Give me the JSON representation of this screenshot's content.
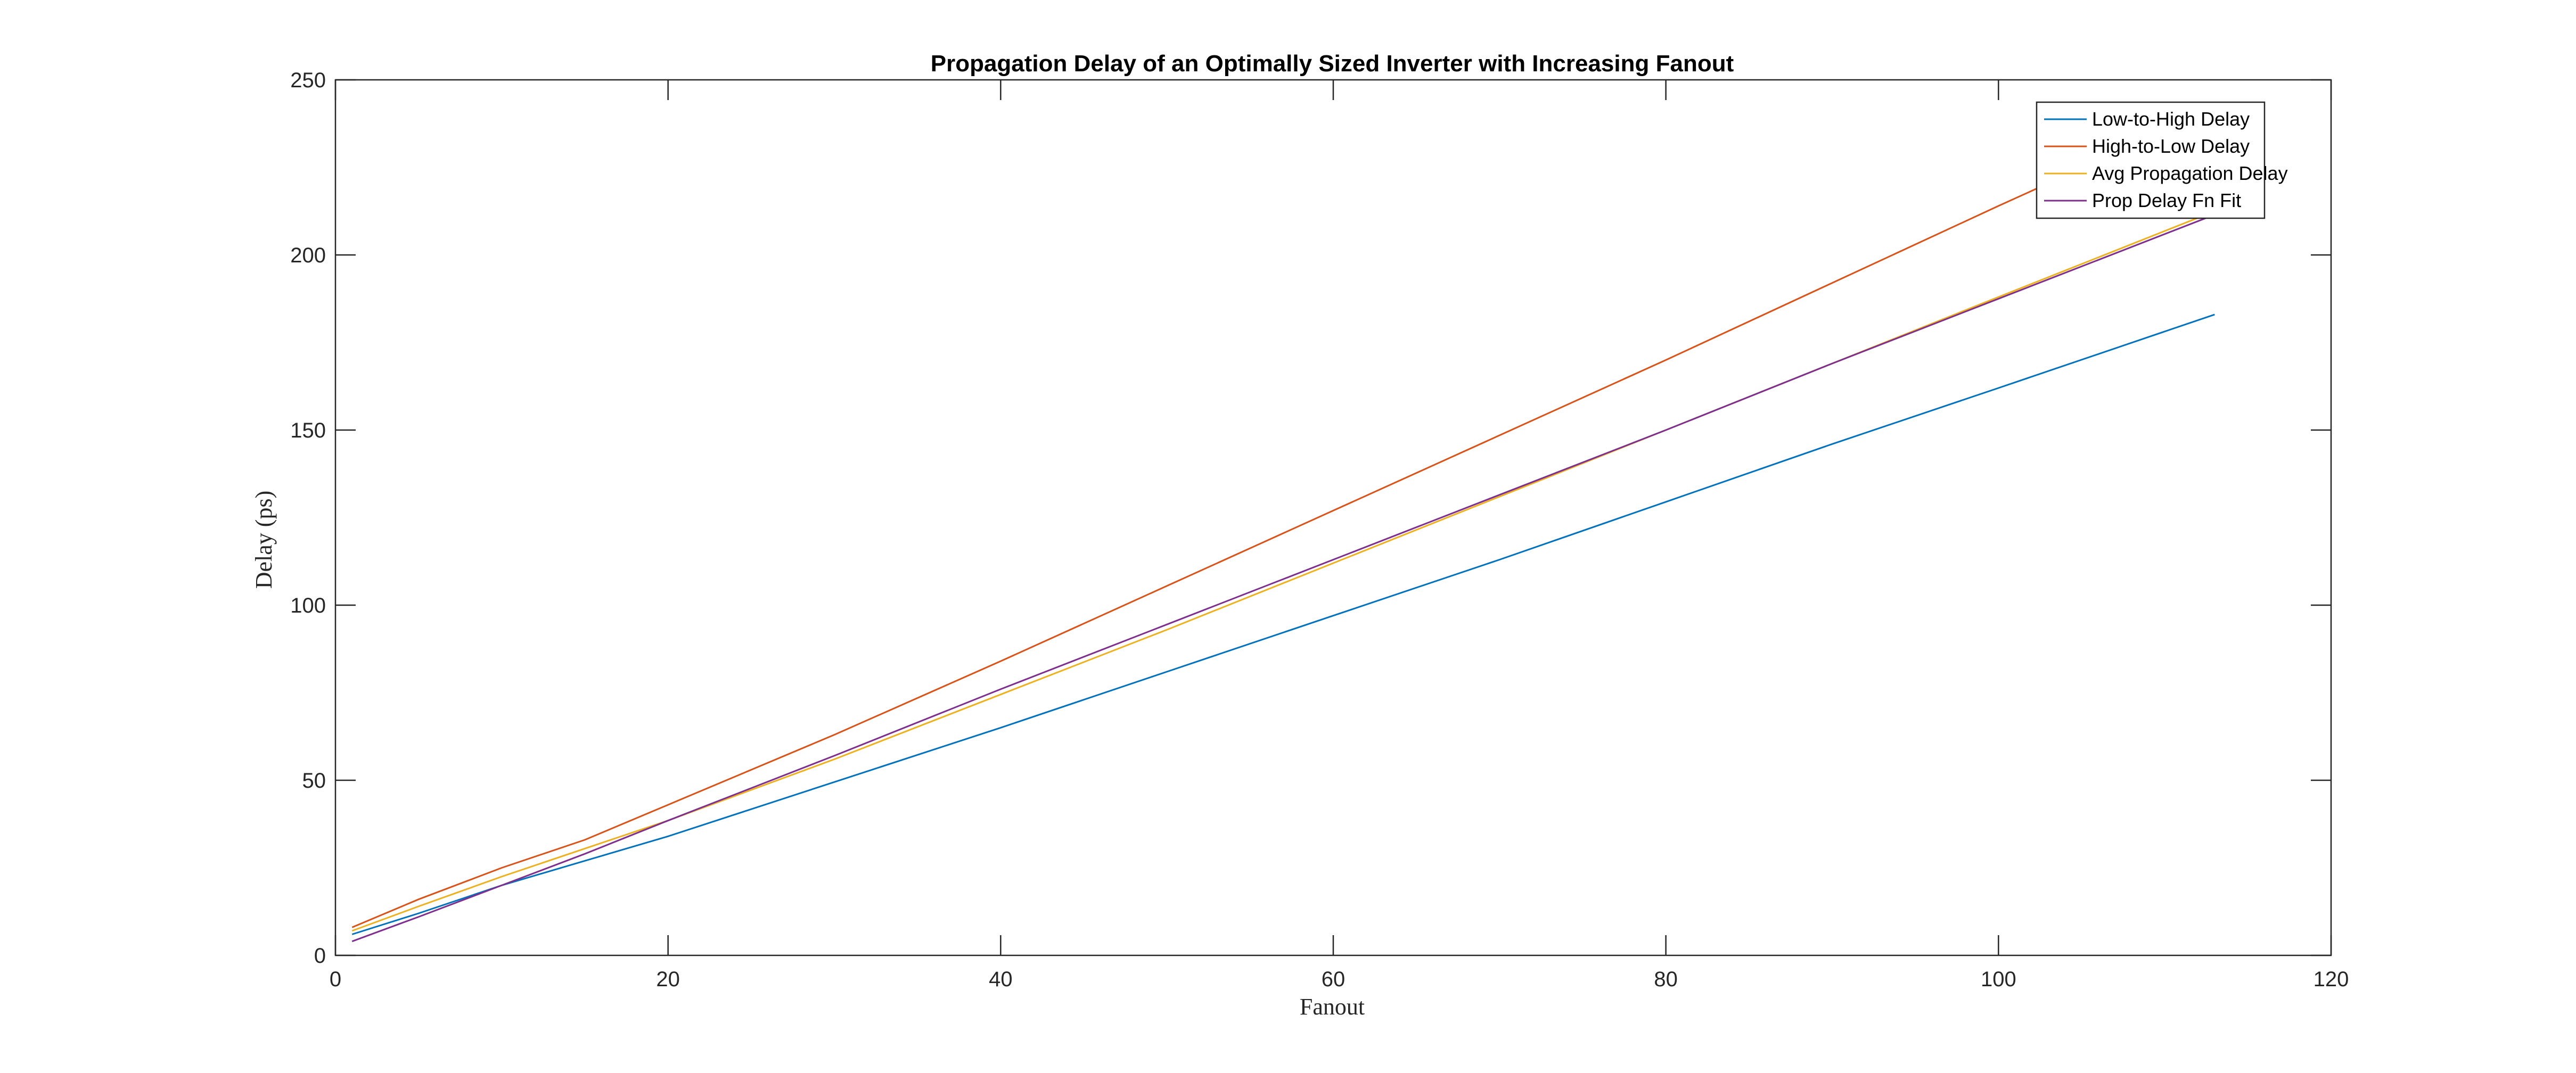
{
  "chart_data": {
    "type": "line",
    "title": "Propagation Delay of an Optimally Sized Inverter with Increasing Fanout",
    "xlabel": "Fanout",
    "ylabel": "Delay (ps)",
    "xlim": [
      0,
      120
    ],
    "ylim": [
      0,
      250
    ],
    "xticks": [
      0,
      20,
      40,
      60,
      80,
      100,
      120
    ],
    "yticks": [
      0,
      50,
      100,
      150,
      200,
      250
    ],
    "grid": false,
    "legend_position": "top-right",
    "x": [
      1,
      5,
      10,
      15,
      20,
      30,
      40,
      50,
      60,
      70,
      80,
      90,
      100,
      113
    ],
    "series": [
      {
        "name": "Low-to-High Delay",
        "color": "#0072BD",
        "values": [
          6,
          12,
          20,
          27,
          34,
          49.5,
          65,
          81,
          97,
          113,
          129.5,
          146,
          162,
          183
        ]
      },
      {
        "name": "High-to-Low Delay",
        "color": "#D95319",
        "values": [
          8,
          16,
          25,
          33,
          43,
          63,
          84,
          105.5,
          127,
          148.5,
          170,
          192,
          214,
          242
        ]
      },
      {
        "name": "Avg Propagation Delay",
        "color": "#EDB120",
        "values": [
          7,
          14,
          22.5,
          30.5,
          38.5,
          56,
          74.5,
          93,
          112,
          131,
          150,
          169,
          188,
          212.5
        ]
      },
      {
        "name": "Prop Delay Fn Fit",
        "color": "#7E2F8E",
        "values": [
          4,
          11,
          20,
          29,
          38.5,
          57,
          76,
          94.5,
          113,
          131.5,
          150,
          169,
          187.5,
          211.5
        ]
      }
    ]
  }
}
